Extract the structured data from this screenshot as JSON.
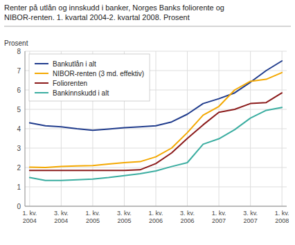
{
  "chart_data": {
    "type": "line",
    "title": "Renter på utlån og innskudd i banker, Norges Banks foliorente og\nNIBOR-renten. 1. kvartal 2004-2. kvartal 2008. Prosent",
    "y_label": "Prosent",
    "categories": [
      "1. kv.\n2004",
      null,
      "3. kv.\n2004",
      null,
      "1. kv.\n2005",
      null,
      "3. kv.\n2005",
      null,
      "1. kv.\n2006",
      null,
      "3. kv.\n2006",
      null,
      "1. kv.\n2007",
      null,
      "3. kv.\n2007",
      null,
      "1. kv.\n2008"
    ],
    "series": [
      {
        "name": "Bankutlån i alt",
        "color": "#1f3b8c",
        "values": [
          4.3,
          4.15,
          4.1,
          4.0,
          3.92,
          3.98,
          4.05,
          4.1,
          4.15,
          4.35,
          4.75,
          5.3,
          5.55,
          5.85,
          6.4,
          7.0,
          7.5
        ]
      },
      {
        "name": "NIBOR-renten (3 md. effektiv)",
        "color": "#f4a800",
        "values": [
          2.02,
          2.0,
          2.05,
          2.08,
          2.1,
          2.18,
          2.25,
          2.3,
          2.55,
          3.0,
          3.8,
          4.7,
          5.15,
          6.0,
          6.45,
          6.55,
          6.9
        ]
      },
      {
        "name": "Foliorenten",
        "color": "#8b1a1a",
        "values": [
          1.85,
          1.85,
          1.85,
          1.85,
          1.85,
          1.85,
          1.85,
          1.88,
          2.2,
          2.75,
          3.5,
          4.2,
          4.85,
          5.0,
          5.3,
          5.35,
          5.85
        ]
      },
      {
        "name": "Bankinnskudd i alt",
        "color": "#3aada0",
        "values": [
          1.48,
          1.33,
          1.33,
          1.37,
          1.4,
          1.48,
          1.58,
          1.68,
          1.82,
          2.05,
          2.25,
          3.2,
          3.48,
          3.95,
          4.55,
          4.95,
          5.1
        ]
      }
    ],
    "ylim": [
      0,
      8
    ],
    "yticks": [
      0,
      1,
      2,
      3,
      4,
      5,
      6,
      7,
      8
    ],
    "grid": true,
    "legend": "upper left"
  }
}
